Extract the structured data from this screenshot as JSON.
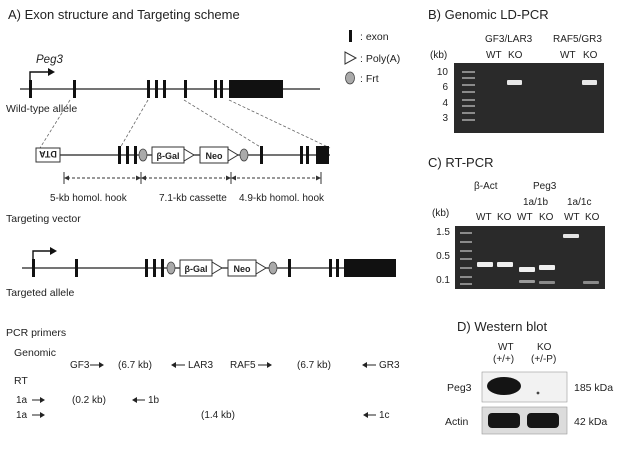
{
  "panelA": {
    "title": "A) Exon structure and Targeting scheme",
    "gene": "Peg3",
    "legend": {
      "exon": ": exon",
      "polya": ": Poly(A)",
      "frt": ": Frt"
    },
    "wildtype_label": "Wild-type allele",
    "vector": {
      "dta": "DTA",
      "bgal": "β-Gal",
      "neo": "Neo"
    },
    "hooks": [
      "5-kb homol. hook",
      "7.1-kb cassette",
      "4.9-kb homol. hook"
    ],
    "vector_label": "Targeting vector",
    "targeted_label": "Targeted allele",
    "primers": {
      "title": "PCR primers",
      "genomic_label": "Genomic",
      "genomic": [
        "GF3",
        "(6.7 kb)",
        "LAR3",
        "RAF5",
        "(6.7 kb)",
        "GR3"
      ],
      "rt_label": "RT",
      "rt": [
        "1a",
        "(0.2 kb)",
        "1b",
        "1a",
        "(1.4 kb)",
        "1c"
      ]
    }
  },
  "panelB": {
    "title": "B) Genomic LD-PCR",
    "unit": "(kb)",
    "group1": "GF3/LAR3",
    "group2": "RAF5/GR3",
    "lanes": [
      "WT",
      "KO",
      "WT",
      "KO"
    ],
    "markers": [
      "10",
      "6",
      "4",
      "3"
    ]
  },
  "panelC": {
    "title": "C) RT-PCR",
    "unit": "(kb)",
    "group1": "β-Act",
    "group2": "Peg3",
    "sub1": "1a/1b",
    "sub2": "1a/1c",
    "lanes": [
      "WT",
      "KO",
      "WT",
      "KO",
      "WT",
      "KO"
    ],
    "markers": [
      "1.5",
      "0.5",
      "0.1"
    ]
  },
  "panelD": {
    "title": "D) Western blot",
    "wt": "WT",
    "wt_geno": "(+/+)",
    "ko": "KO",
    "ko_geno": "(+/-P)",
    "rows": [
      {
        "label": "Peg3",
        "size": "185 kDa"
      },
      {
        "label": "Actin",
        "size": "42 kDa"
      }
    ]
  }
}
